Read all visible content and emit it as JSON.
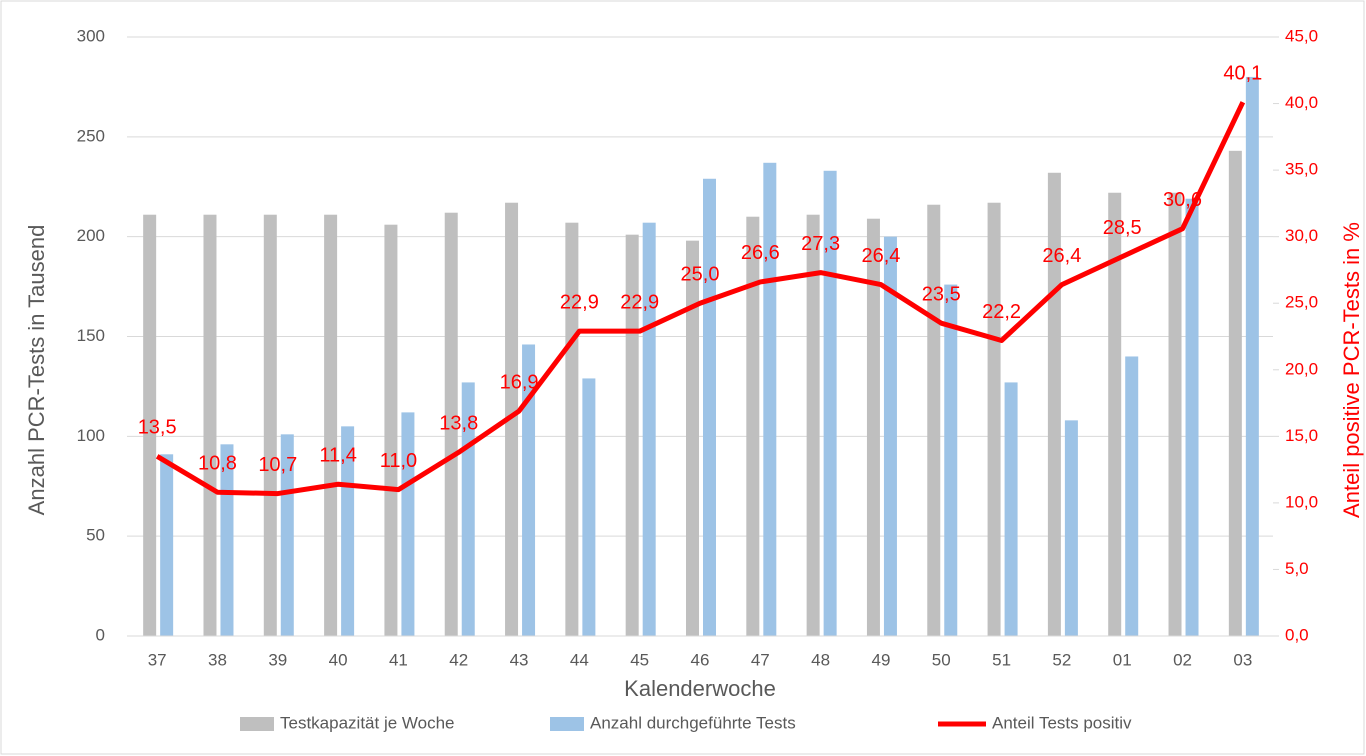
{
  "chart_data": {
    "type": "bar-line",
    "x_label": "Kalenderwoche",
    "y_label": "Anzahl PCR-Tests in Tausend",
    "y2_label": "Anteil positive PCR-Tests in %",
    "categories": [
      "37",
      "38",
      "39",
      "40",
      "41",
      "42",
      "43",
      "44",
      "45",
      "46",
      "47",
      "48",
      "49",
      "50",
      "51",
      "52",
      "01",
      "02",
      "03"
    ],
    "series": [
      {
        "name": "Testkapazität je Woche",
        "color": "#bfbfbf",
        "type": "bar",
        "values": [
          211,
          211,
          211,
          211,
          206,
          212,
          217,
          207,
          201,
          198,
          210,
          211,
          209,
          216,
          217,
          232,
          222,
          222,
          243
        ]
      },
      {
        "name": "Anzahl durchgeführte Tests",
        "color": "#9dc3e6",
        "type": "bar",
        "values": [
          91,
          96,
          101,
          105,
          112,
          127,
          146,
          129,
          207,
          229,
          237,
          233,
          200,
          176,
          127,
          108,
          140,
          219,
          280
        ]
      },
      {
        "name": "Anteil Tests positiv",
        "color": "#ff0000",
        "type": "line",
        "axis": "y2",
        "values": [
          13.5,
          10.8,
          10.7,
          11.4,
          11.0,
          13.8,
          16.9,
          22.9,
          22.9,
          25.0,
          26.6,
          27.3,
          26.4,
          23.5,
          22.2,
          26.4,
          28.5,
          30.6,
          40.1
        ],
        "value_labels": [
          "13,5",
          "10,8",
          "10,7",
          "11,4",
          "11,0",
          "13,8",
          "16,9",
          "22,9",
          "22,9",
          "25,0",
          "26,6",
          "27,3",
          "26,4",
          "23,5",
          "22,2",
          "26,4",
          "28,5",
          "30,6",
          "40,1"
        ]
      }
    ],
    "ylim": [
      0,
      300
    ],
    "yticks": [
      0,
      50,
      100,
      150,
      200,
      250,
      300
    ],
    "y2lim": [
      0,
      45
    ],
    "y2ticks": [
      {
        "value": 0,
        "label": "0,0"
      },
      {
        "value": 5,
        "label": "5,0"
      },
      {
        "value": 10,
        "label": "10,0"
      },
      {
        "value": 15,
        "label": "15,0"
      },
      {
        "value": 20,
        "label": "20,0"
      },
      {
        "value": 25,
        "label": "25,0"
      },
      {
        "value": 30,
        "label": "30,0"
      },
      {
        "value": 35,
        "label": "35,0"
      },
      {
        "value": 40,
        "label": "40,0"
      },
      {
        "value": 45,
        "label": "45,0"
      }
    ],
    "grid": true,
    "legend": "bottom"
  }
}
